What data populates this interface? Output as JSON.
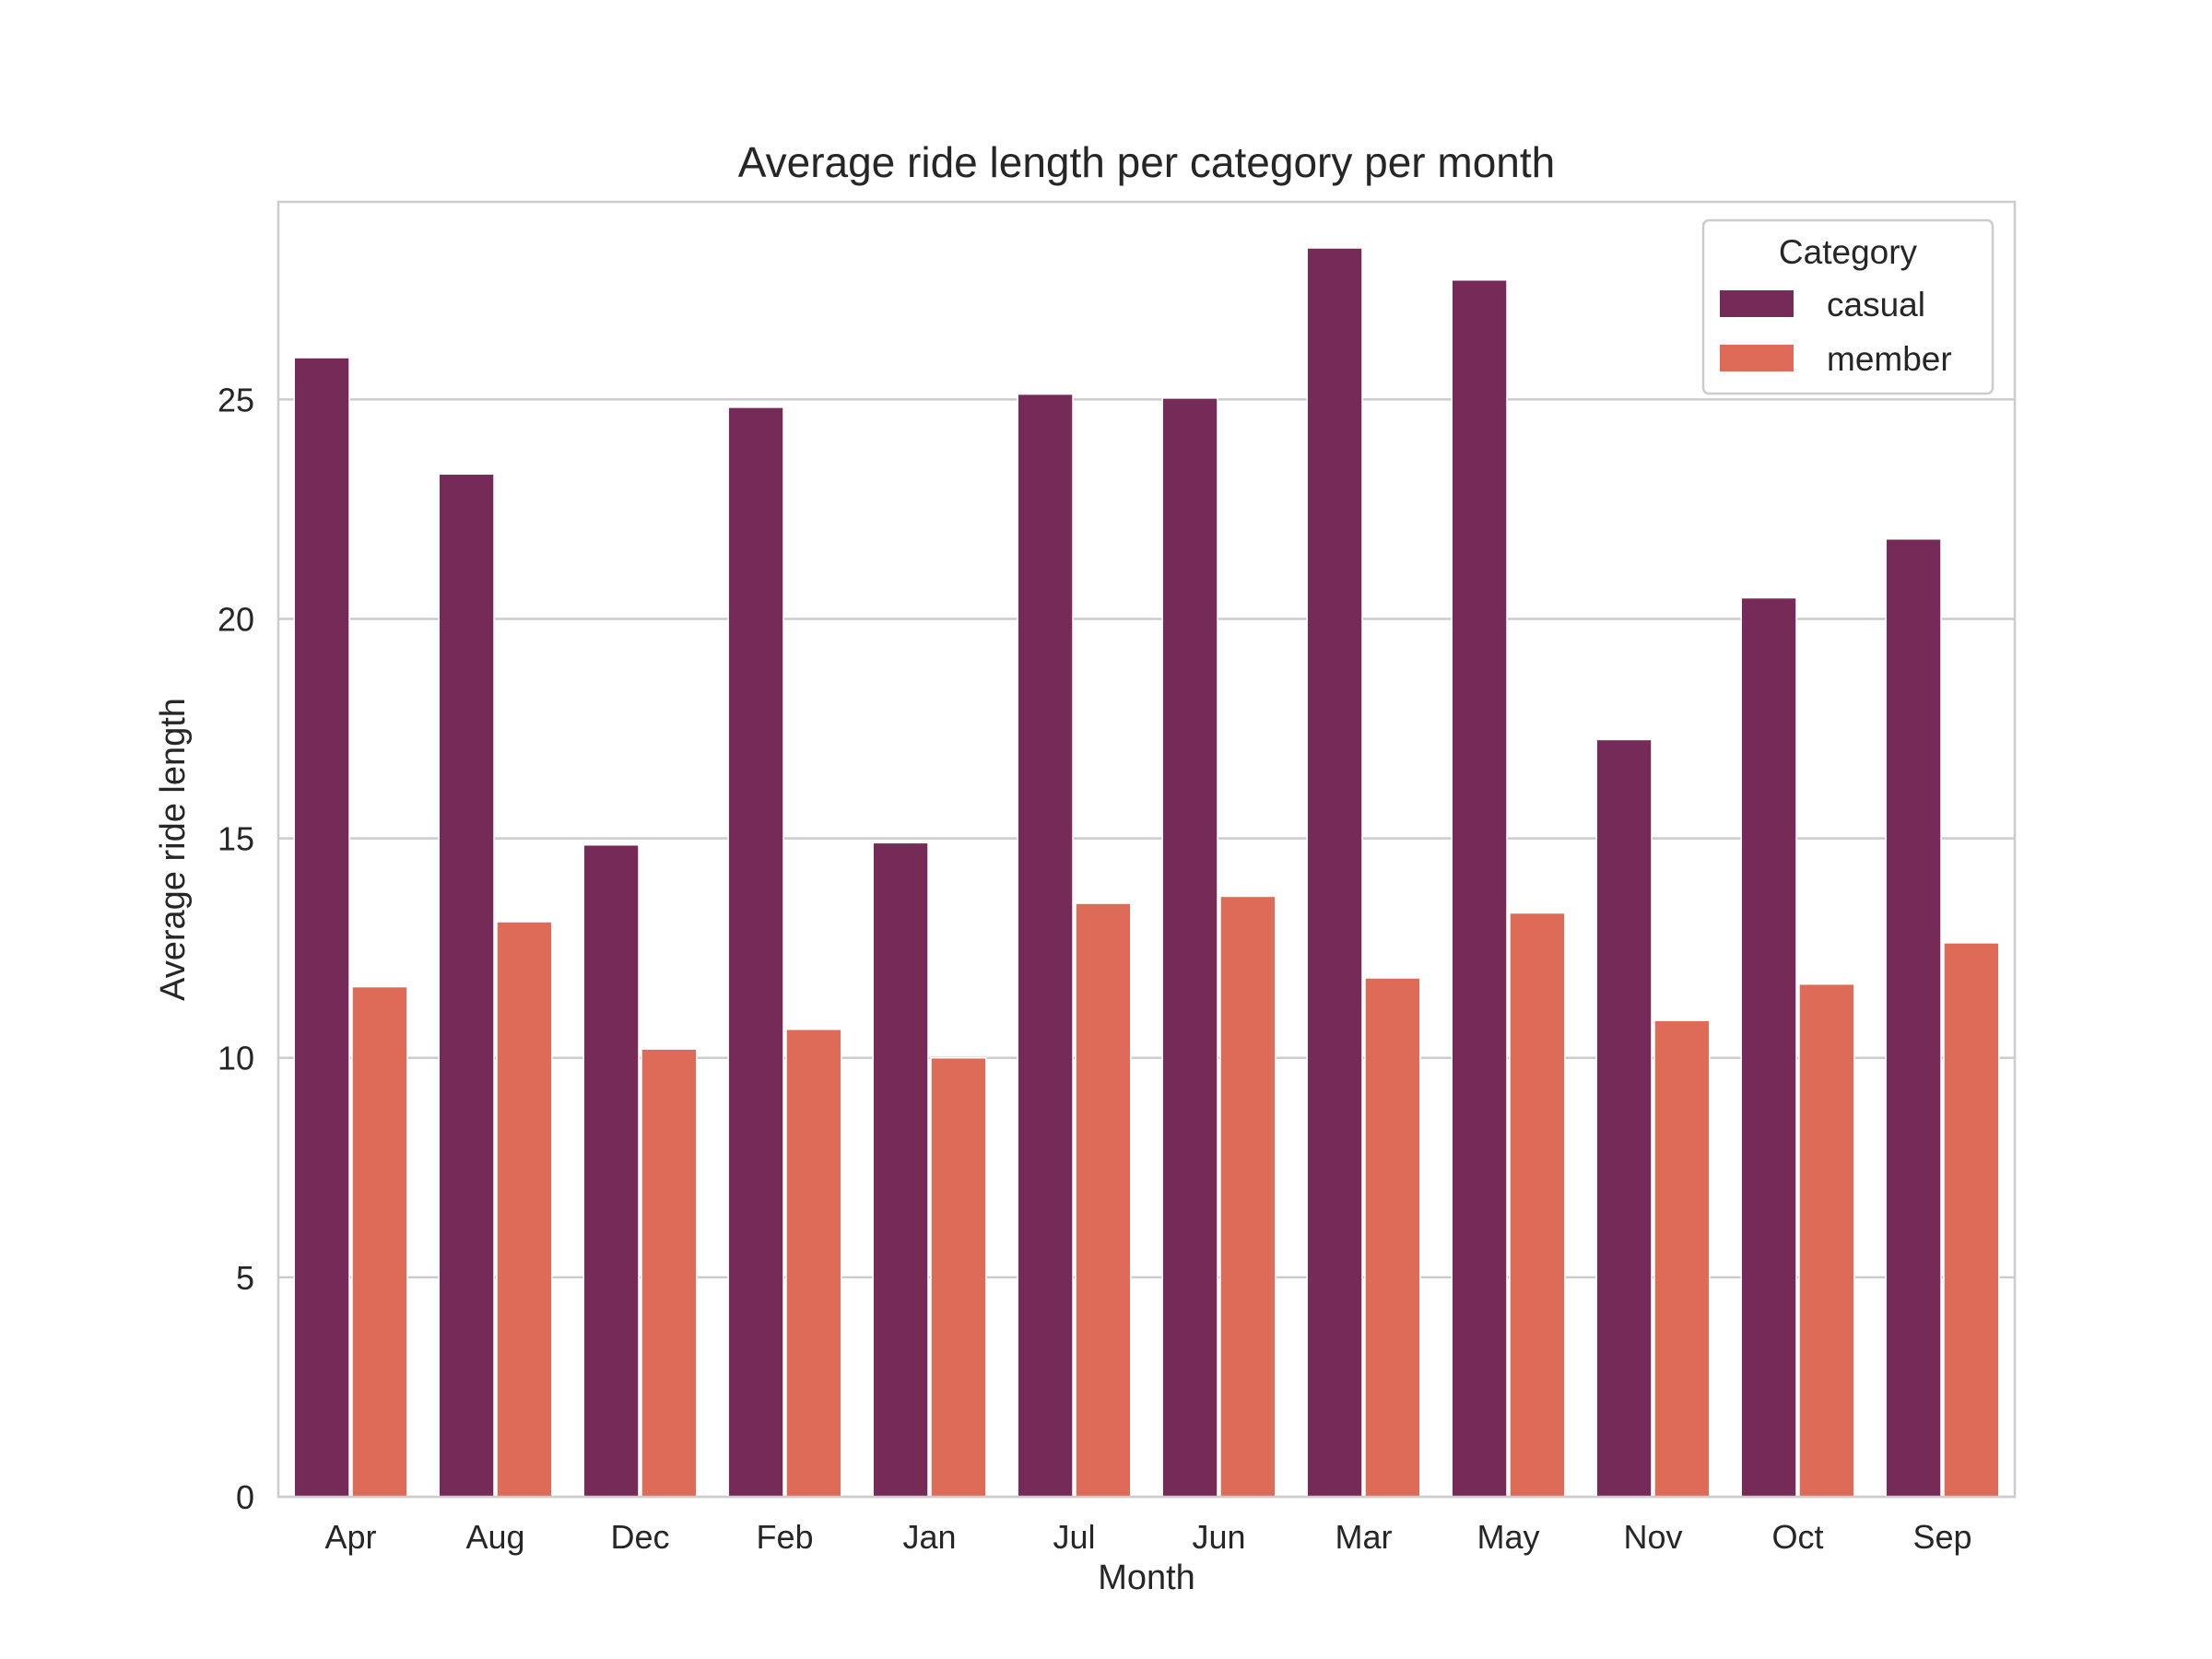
{
  "chart_data": {
    "type": "bar",
    "title": "Average ride length per category per month",
    "xlabel": "Month",
    "ylabel": "Average ride length",
    "categories": [
      "Apr",
      "Aug",
      "Dec",
      "Feb",
      "Jan",
      "Jul",
      "Jun",
      "Mar",
      "May",
      "Nov",
      "Oct",
      "Sep"
    ],
    "series": [
      {
        "name": "casual",
        "color": "#762a58",
        "values": [
          25.95,
          23.3,
          14.85,
          24.82,
          14.9,
          25.12,
          25.03,
          28.45,
          27.72,
          17.25,
          20.48,
          21.82
        ]
      },
      {
        "name": "member",
        "color": "#dd6b57",
        "values": [
          11.62,
          13.1,
          10.2,
          10.65,
          10.0,
          13.52,
          13.68,
          11.82,
          13.3,
          10.85,
          11.68,
          12.62
        ]
      }
    ],
    "ylim": [
      0,
      29.5
    ],
    "yticks": [
      0,
      5,
      10,
      15,
      20,
      25
    ],
    "grid": "y",
    "legend": {
      "title": "Category",
      "position": "top-right"
    }
  }
}
